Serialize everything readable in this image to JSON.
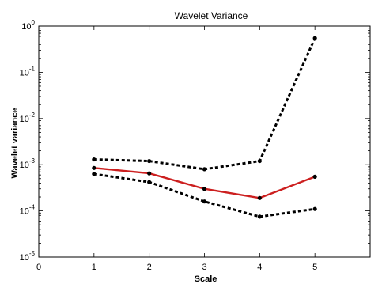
{
  "chart_data": {
    "type": "line",
    "title": "Wavelet Variance",
    "xlabel": "Scale",
    "ylabel": "Wavelet variance",
    "xlim": [
      0,
      6
    ],
    "ylim": [
      1e-05,
      1
    ],
    "yscale": "log",
    "x_ticks": [
      "0",
      "1",
      "2",
      "3",
      "4",
      "5"
    ],
    "y_ticks": [
      {
        "base": "10",
        "exp": "0",
        "value": 1
      },
      {
        "base": "10",
        "exp": "-1",
        "value": 0.1
      },
      {
        "base": "10",
        "exp": "-2",
        "value": 0.01
      },
      {
        "base": "10",
        "exp": "-3",
        "value": 0.001
      },
      {
        "base": "10",
        "exp": "-4",
        "value": 0.0001
      },
      {
        "base": "10",
        "exp": "-5",
        "value": 1e-05
      }
    ],
    "grid": false,
    "x": [
      1,
      2,
      3,
      4,
      5
    ],
    "series": [
      {
        "role": "estimate",
        "color": "#cc1f1f",
        "style": "solid",
        "values": [
          0.00085,
          0.00065,
          0.0003,
          0.00019,
          0.00055
        ]
      },
      {
        "role": "upper-bound",
        "color": "#000000",
        "style": "dotted",
        "values": [
          0.0013,
          0.0012,
          0.0008,
          0.0012,
          0.55
        ]
      },
      {
        "role": "lower-bound",
        "color": "#000000",
        "style": "dotted",
        "values": [
          0.00063,
          0.00042,
          0.00016,
          7.5e-05,
          0.00011
        ]
      }
    ]
  }
}
